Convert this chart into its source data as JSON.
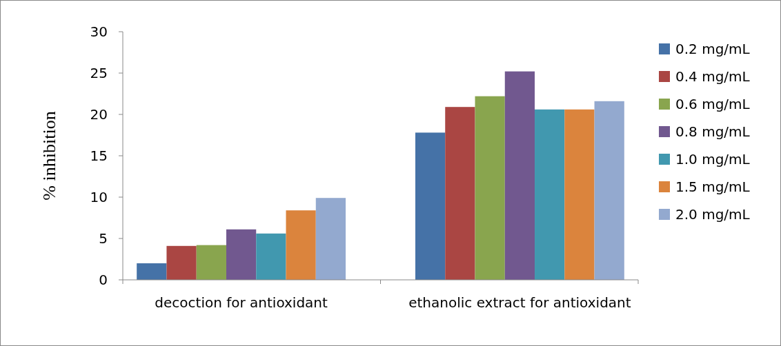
{
  "chart_data": {
    "type": "bar",
    "ylabel": "% inhibition",
    "categories": [
      "decoction for antioxidant",
      "ethanolic extract for antioxidant"
    ],
    "series": [
      {
        "name": "0.2 mg/mL",
        "color": "#4572a7",
        "values": [
          2.0,
          17.8
        ]
      },
      {
        "name": "0.4 mg/mL",
        "color": "#aa4643",
        "values": [
          4.1,
          20.9
        ]
      },
      {
        "name": "0.6 mg/mL",
        "color": "#89a54e",
        "values": [
          4.2,
          22.2
        ]
      },
      {
        "name": "0.8 mg/mL",
        "color": "#71588f",
        "values": [
          6.1,
          25.2
        ]
      },
      {
        "name": "1.0 mg/mL",
        "color": "#4198af",
        "values": [
          5.6,
          20.6
        ]
      },
      {
        "name": "1.5 mg/mL",
        "color": "#db843d",
        "values": [
          8.4,
          20.6
        ]
      },
      {
        "name": "2.0 mg/mL",
        "color": "#93a9cf",
        "values": [
          9.9,
          21.6
        ]
      }
    ],
    "ylim": [
      0,
      30
    ],
    "yticks": [
      0,
      5,
      10,
      15,
      20,
      25,
      30
    ],
    "grid": false,
    "legend": "right"
  }
}
